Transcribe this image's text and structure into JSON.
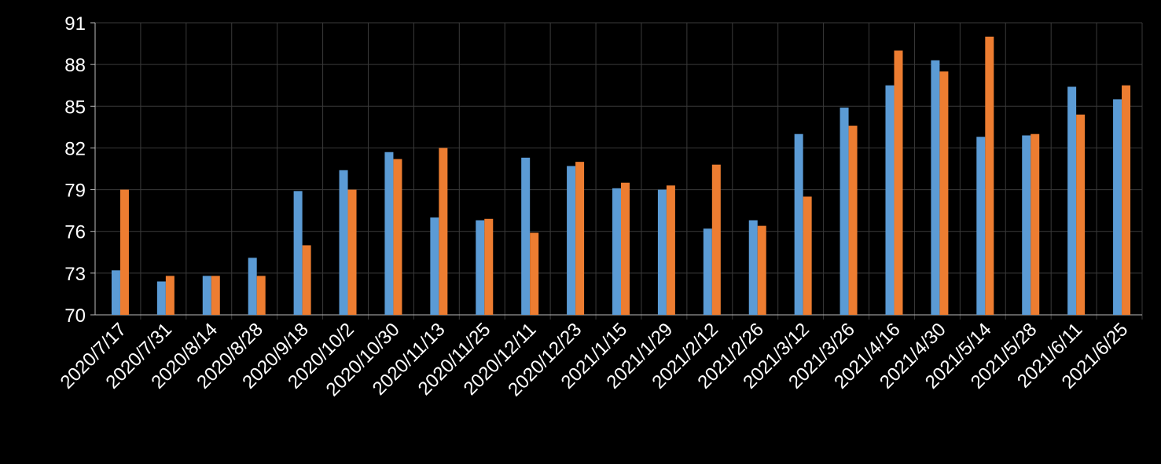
{
  "chart_data": {
    "type": "bar",
    "categories": [
      "2020/7/17",
      "2020/7/31",
      "2020/8/14",
      "2020/8/28",
      "2020/9/18",
      "2020/10/2",
      "2020/10/30",
      "2020/11/13",
      "2020/11/25",
      "2020/12/11",
      "2020/12/23",
      "2021/1/15",
      "2021/1/29",
      "2021/2/12",
      "2021/2/26",
      "2021/3/12",
      "2021/3/26",
      "2021/4/16",
      "2021/4/30",
      "2021/5/14",
      "2021/5/28",
      "2021/6/11",
      "2021/6/25"
    ],
    "series": [
      {
        "color": "#5b9bd5",
        "values": [
          73.2,
          72.4,
          72.8,
          74.1,
          78.9,
          80.4,
          81.7,
          77.0,
          76.8,
          81.3,
          80.7,
          79.1,
          79.0,
          76.2,
          76.8,
          83.0,
          84.9,
          86.5,
          88.3,
          82.8,
          82.9,
          86.4,
          85.5
        ]
      },
      {
        "color": "#ed7d31",
        "values": [
          79.0,
          72.8,
          72.8,
          72.8,
          75.0,
          79.0,
          81.2,
          82.0,
          76.9,
          75.9,
          81.0,
          79.5,
          79.3,
          80.8,
          76.4,
          78.5,
          83.6,
          89.0,
          87.5,
          90.0,
          83.0,
          84.4,
          86.5
        ]
      }
    ],
    "ylim": [
      70,
      91
    ],
    "yticks": [
      70,
      73,
      76,
      79,
      82,
      85,
      88,
      91
    ],
    "grid": true
  }
}
